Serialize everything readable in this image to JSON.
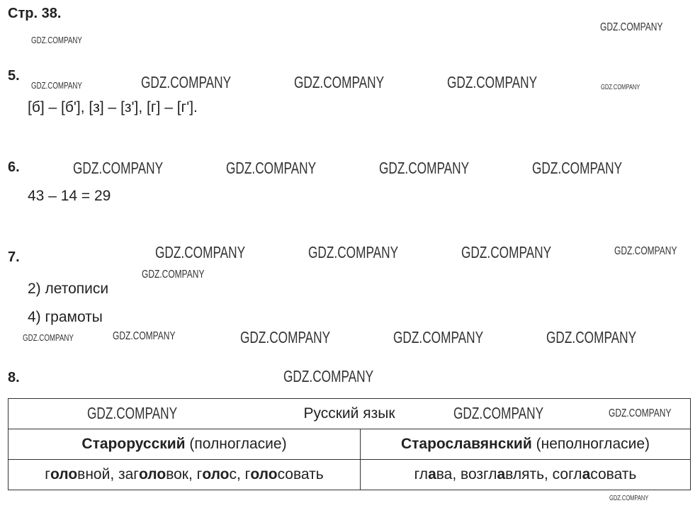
{
  "header": "Стр. 38.",
  "watermark": "GDZ.COMPANY",
  "tasks": [
    {
      "num": "5.",
      "lines": [
        "[б] – [б'], [з] – [з'], [г] – [г']."
      ]
    },
    {
      "num": "6.",
      "lines": [
        "43 – 14 = 29"
      ]
    },
    {
      "num": "7.",
      "lines": [
        "2) летописи",
        "4) грамоты"
      ]
    },
    {
      "num": "8."
    }
  ],
  "table": {
    "title": "Русский язык",
    "col1": {
      "bold": "Старорусский",
      "rest": " (полногласие)"
    },
    "col2": {
      "bold": "Старославянский",
      "rest": " (неполногласие)"
    },
    "row1": [
      [
        "г",
        "оло",
        "вной, заг",
        "оло",
        "вок, г",
        "оло",
        "с, г",
        "оло",
        "совать"
      ]
    ],
    "row2": [
      [
        "гл",
        "а",
        "ва, возгл",
        "а",
        "влять, согл",
        "а",
        "совать"
      ]
    ]
  }
}
